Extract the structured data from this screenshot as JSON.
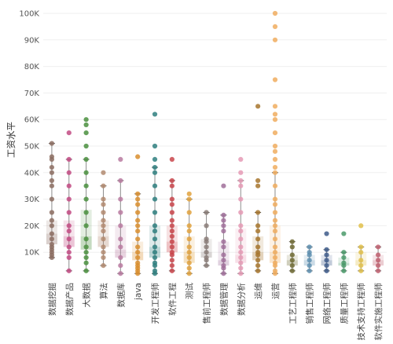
{
  "chart_data": {
    "type": "box",
    "ylabel": "工资水平",
    "ylim": [
      0,
      100000
    ],
    "yticks": [
      {
        "value": 10000,
        "label": "10K"
      },
      {
        "value": 20000,
        "label": "20K"
      },
      {
        "value": 30000,
        "label": "30K"
      },
      {
        "value": 40000,
        "label": "40K"
      },
      {
        "value": 50000,
        "label": "50K"
      },
      {
        "value": 60000,
        "label": "60K"
      },
      {
        "value": 70000,
        "label": "70K"
      },
      {
        "value": 80000,
        "label": "80K"
      },
      {
        "value": 90000,
        "label": "90K"
      },
      {
        "value": 100000,
        "label": "100K"
      }
    ],
    "grid": true,
    "categories": [
      {
        "name": "数据挖掘",
        "color": "#8c6d62",
        "min": 8000,
        "q1": 13000,
        "median": 17000,
        "q3": 22000,
        "max": 51000,
        "points": [
          8000,
          9000,
          10000,
          11000,
          12000,
          13000,
          15000,
          17000,
          20000,
          22000,
          25000,
          30000,
          35000,
          37000,
          40000,
          42000,
          45000,
          46000,
          51000
        ]
      },
      {
        "name": "数据产品",
        "color": "#c24a82",
        "min": 3000,
        "q1": 12000,
        "median": 16000,
        "q3": 22000,
        "max": 45000,
        "points": [
          3000,
          8000,
          10000,
          12000,
          15000,
          18000,
          20000,
          25000,
          30000,
          35000,
          40000,
          45000,
          55000
        ]
      },
      {
        "name": "大数据",
        "color": "#4a8f3e",
        "min": 3000,
        "q1": 11000,
        "median": 16000,
        "q3": 26000,
        "max": 45000,
        "points": [
          3000,
          6000,
          8000,
          10000,
          12000,
          15000,
          20000,
          25000,
          30000,
          35000,
          40000,
          45000,
          50000,
          55000,
          58000,
          60000
        ]
      },
      {
        "name": "算法",
        "color": "#b28a70",
        "min": 5000,
        "q1": 12000,
        "median": 16000,
        "q3": 22000,
        "max": 35000,
        "points": [
          5000,
          8000,
          10000,
          12000,
          15000,
          18000,
          20000,
          22000,
          25000,
          28000,
          30000,
          35000,
          40000
        ]
      },
      {
        "name": "数据库",
        "color": "#b87aa0",
        "min": 2000,
        "q1": 8000,
        "median": 11000,
        "q3": 20000,
        "max": 37000,
        "points": [
          2000,
          5000,
          8000,
          12000,
          15000,
          20000,
          25000,
          30000,
          37000,
          45000
        ]
      },
      {
        "name": "java",
        "color": "#d98e2e",
        "min": 2000,
        "q1": 7000,
        "median": 10000,
        "q3": 14000,
        "max": 32000,
        "points": [
          2000,
          3000,
          4000,
          5000,
          6000,
          8000,
          10000,
          12000,
          15000,
          18000,
          20000,
          22000,
          25000,
          28000,
          30000,
          32000,
          46000
        ]
      },
      {
        "name": "开发工程师",
        "color": "#2f7f7f",
        "min": 2000,
        "q1": 8000,
        "median": 12000,
        "q3": 20000,
        "max": 42000,
        "points": [
          2000,
          3000,
          5000,
          6000,
          8000,
          10000,
          12000,
          15000,
          18000,
          20000,
          25000,
          30000,
          35000,
          40000,
          42000,
          45000,
          50000,
          62000
        ]
      },
      {
        "name": "软件工程",
        "color": "#c9454b",
        "min": 3000,
        "q1": 10000,
        "median": 14000,
        "q3": 20000,
        "max": 37000,
        "points": [
          3000,
          5000,
          7000,
          9000,
          10000,
          12000,
          14000,
          16000,
          18000,
          20000,
          22000,
          25000,
          28000,
          30000,
          35000,
          37000,
          45000
        ]
      },
      {
        "name": "测试",
        "color": "#e0a23e",
        "min": 2000,
        "q1": 6000,
        "median": 10000,
        "q3": 16000,
        "max": 30000,
        "points": [
          2000,
          4000,
          6000,
          8000,
          10000,
          12000,
          15000,
          18000,
          20000,
          25000,
          30000,
          32000
        ]
      },
      {
        "name": "售前工程师",
        "color": "#8a7d78",
        "min": 5000,
        "q1": 8000,
        "median": 10000,
        "q3": 15000,
        "max": 25000,
        "points": [
          5000,
          7000,
          8000,
          10000,
          12000,
          14000,
          15000,
          20000,
          25000
        ]
      },
      {
        "name": "数据管理",
        "color": "#a06f9a",
        "min": 2000,
        "q1": 5000,
        "median": 7000,
        "q3": 14000,
        "max": 24000,
        "points": [
          2000,
          4000,
          5000,
          7000,
          9000,
          12000,
          14000,
          18000,
          20000,
          22000,
          24000,
          35000
        ]
      },
      {
        "name": "数据分析",
        "color": "#e59ab5",
        "min": 2000,
        "q1": 6000,
        "median": 9000,
        "q3": 19000,
        "max": 37000,
        "points": [
          2000,
          4000,
          6000,
          8000,
          10000,
          12000,
          15000,
          18000,
          20000,
          25000,
          30000,
          35000,
          37000,
          40000,
          45000
        ]
      },
      {
        "name": "运维",
        "color": "#a7762e",
        "min": 3000,
        "q1": 7000,
        "median": 10000,
        "q3": 16000,
        "max": 25000,
        "points": [
          3000,
          5000,
          7000,
          9000,
          10000,
          12000,
          15000,
          18000,
          20000,
          25000,
          35000,
          37000,
          65000
        ]
      },
      {
        "name": "运营",
        "color": "#f0ad5f",
        "min": 2000,
        "q1": 6000,
        "median": 10000,
        "q3": 20000,
        "max": 40000,
        "points": [
          2000,
          3000,
          5000,
          6000,
          8000,
          10000,
          12000,
          15000,
          18000,
          20000,
          22000,
          25000,
          28000,
          30000,
          35000,
          40000,
          42000,
          45000,
          48000,
          50000,
          55000,
          60000,
          62000,
          65000,
          75000,
          90000,
          95000,
          100000
        ]
      },
      {
        "name": "工艺工程师",
        "color": "#6e6a33",
        "min": 3000,
        "q1": 5000,
        "median": 7000,
        "q3": 9000,
        "max": 14000,
        "points": [
          3000,
          5000,
          7000,
          9000,
          12000,
          14000
        ]
      },
      {
        "name": "销售工程师",
        "color": "#5e8fb0",
        "min": 3000,
        "q1": 5000,
        "median": 7000,
        "q3": 9000,
        "max": 12000,
        "points": [
          3000,
          5000,
          7000,
          9000,
          10000,
          12000
        ]
      },
      {
        "name": "网络工程师",
        "color": "#3d5a8a",
        "min": 3000,
        "q1": 5000,
        "median": 7000,
        "q3": 9000,
        "max": 11000,
        "points": [
          3000,
          5000,
          7000,
          9000,
          11000,
          17000
        ]
      },
      {
        "name": "质量工程师",
        "color": "#4a9a6a",
        "min": 3000,
        "q1": 5000,
        "median": 6000,
        "q3": 8000,
        "max": 10000,
        "points": [
          3000,
          5000,
          6000,
          8000,
          10000,
          17000
        ]
      },
      {
        "name": "技术支持工程师",
        "color": "#e0c04a",
        "min": 3000,
        "q1": 5000,
        "median": 7000,
        "q3": 10000,
        "max": 12000,
        "points": [
          3000,
          5000,
          7000,
          10000,
          12000,
          20000
        ]
      },
      {
        "name": "软件实施工程师",
        "color": "#c06070",
        "min": 3000,
        "q1": 5000,
        "median": 7000,
        "q3": 9000,
        "max": 12000,
        "points": [
          3000,
          5000,
          7000,
          9000,
          12000
        ]
      }
    ]
  }
}
